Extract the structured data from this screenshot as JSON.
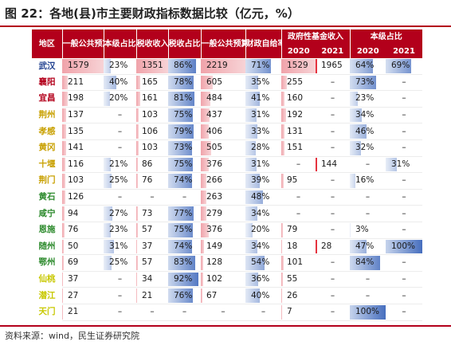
{
  "title": "图 22：各地(县)市主要财政指标数据比较（亿元，%）",
  "source": "资料来源：wind，民生证券研究院",
  "colors": {
    "header_bg": "#b3001b",
    "red_bar": "#f0a3aa",
    "blue_bar": "#5b82c8",
    "red_line": "#e5333f"
  },
  "headers": {
    "region": "地区",
    "gp_budget_income": "一般公共预算收入",
    "own_level_share": "本级占比",
    "tax_income": "税收收入",
    "tax_share": "税收占比",
    "gp_budget_expense": "一般公共预算支出",
    "self_sufficiency": "财政自给率",
    "gov_fund_income": "政府性基金收入",
    "own_level_share_2": "本级占比",
    "y2020": "2020",
    "y2021": "2021",
    "y2020b": "2020",
    "y2021b": "2021"
  },
  "rows": [
    {
      "name": "武汉",
      "color": "#1f3f8f",
      "c": [
        "1579",
        "23%",
        "1351",
        "86%",
        "2219",
        "71%",
        "1529",
        "1965",
        "64%",
        "69%"
      ],
      "v": [
        1579,
        23,
        1351,
        86,
        2219,
        71,
        1529,
        1965,
        64,
        69
      ]
    },
    {
      "name": "襄阳",
      "color": "#b3001b",
      "c": [
        "211",
        "40%",
        "165",
        "78%",
        "605",
        "35%",
        "255",
        "–",
        "73%",
        "–"
      ],
      "v": [
        211,
        40,
        165,
        78,
        605,
        35,
        255,
        null,
        73,
        null
      ]
    },
    {
      "name": "宜昌",
      "color": "#b3001b",
      "c": [
        "198",
        "20%",
        "161",
        "81%",
        "484",
        "41%",
        "160",
        "–",
        "23%",
        "–"
      ],
      "v": [
        198,
        20,
        161,
        81,
        484,
        41,
        160,
        null,
        23,
        null
      ]
    },
    {
      "name": "荆州",
      "color": "#c8a000",
      "c": [
        "137",
        "–",
        "103",
        "75%",
        "437",
        "31%",
        "192",
        "–",
        "34%",
        "–"
      ],
      "v": [
        137,
        null,
        103,
        75,
        437,
        31,
        192,
        null,
        34,
        null
      ]
    },
    {
      "name": "孝感",
      "color": "#c8a000",
      "c": [
        "135",
        "–",
        "106",
        "79%",
        "406",
        "33%",
        "131",
        "–",
        "46%",
        "–"
      ],
      "v": [
        135,
        null,
        106,
        79,
        406,
        33,
        131,
        null,
        46,
        null
      ]
    },
    {
      "name": "黄冈",
      "color": "#c8a000",
      "c": [
        "141",
        "–",
        "103",
        "73%",
        "505",
        "28%",
        "151",
        "–",
        "32%",
        "–"
      ],
      "v": [
        141,
        null,
        103,
        73,
        505,
        28,
        151,
        null,
        32,
        null
      ]
    },
    {
      "name": "十堰",
      "color": "#c8a000",
      "c": [
        "116",
        "21%",
        "86",
        "75%",
        "376",
        "31%",
        "–",
        "144",
        "–",
        "31%"
      ],
      "v": [
        116,
        21,
        86,
        75,
        376,
        31,
        null,
        144,
        null,
        31
      ]
    },
    {
      "name": "荆门",
      "color": "#c8a000",
      "c": [
        "103",
        "25%",
        "76",
        "74%",
        "266",
        "39%",
        "95",
        "–",
        "16%",
        "–"
      ],
      "v": [
        103,
        25,
        76,
        74,
        266,
        39,
        95,
        null,
        16,
        null
      ]
    },
    {
      "name": "黄石",
      "color": "#2e8b2e",
      "c": [
        "126",
        "–",
        "–",
        "–",
        "263",
        "48%",
        "–",
        "–",
        "–",
        "–"
      ],
      "v": [
        126,
        null,
        null,
        null,
        263,
        48,
        null,
        null,
        null,
        null
      ]
    },
    {
      "name": "咸宁",
      "color": "#2e8b2e",
      "c": [
        "94",
        "27%",
        "73",
        "77%",
        "279",
        "34%",
        "–",
        "–",
        "–",
        "–"
      ],
      "v": [
        94,
        27,
        73,
        77,
        279,
        34,
        null,
        null,
        null,
        null
      ]
    },
    {
      "name": "恩施",
      "color": "#2e8b2e",
      "c": [
        "76",
        "23%",
        "57",
        "75%",
        "376",
        "20%",
        "79",
        "–",
        "3%",
        "–"
      ],
      "v": [
        76,
        23,
        57,
        75,
        376,
        20,
        79,
        null,
        3,
        null
      ]
    },
    {
      "name": "随州",
      "color": "#2e8b2e",
      "c": [
        "50",
        "31%",
        "37",
        "74%",
        "149",
        "34%",
        "18",
        "28",
        "47%",
        "100%"
      ],
      "v": [
        50,
        31,
        37,
        74,
        149,
        34,
        18,
        28,
        47,
        100
      ]
    },
    {
      "name": "鄂州",
      "color": "#2e8b2e",
      "c": [
        "69",
        "25%",
        "57",
        "83%",
        "128",
        "54%",
        "101",
        "–",
        "84%",
        "–"
      ],
      "v": [
        69,
        25,
        57,
        83,
        128,
        54,
        101,
        null,
        84,
        null
      ]
    },
    {
      "name": "仙桃",
      "color": "#c8c800",
      "c": [
        "37",
        "–",
        "34",
        "92%",
        "102",
        "36%",
        "55",
        "–",
        "–",
        "–"
      ],
      "v": [
        37,
        null,
        34,
        92,
        102,
        36,
        55,
        null,
        null,
        null
      ]
    },
    {
      "name": "潜江",
      "color": "#c8c800",
      "c": [
        "27",
        "–",
        "21",
        "76%",
        "67",
        "40%",
        "26",
        "–",
        "–",
        "–"
      ],
      "v": [
        27,
        null,
        21,
        76,
        67,
        40,
        26,
        null,
        null,
        null
      ]
    },
    {
      "name": "天门",
      "color": "#c8c800",
      "c": [
        "21",
        "–",
        "–",
        "–",
        "–",
        "–",
        "7",
        "–",
        "100%",
        "–"
      ],
      "v": [
        21,
        null,
        null,
        null,
        null,
        null,
        7,
        null,
        100,
        null
      ]
    }
  ]
}
